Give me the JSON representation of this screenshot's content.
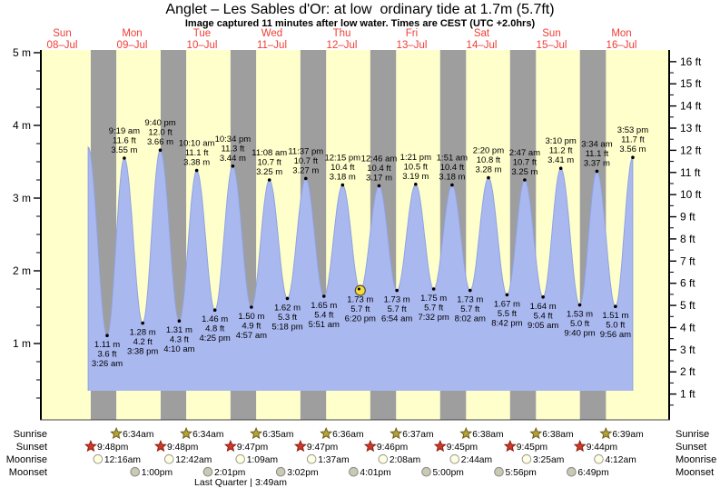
{
  "title": "Anglet – Les Sables d'Or: at low  ordinary tide at 1.7m (5.7ft)",
  "subtitle": "Image captured 11 minutes after low water. Times are CEST (UTC +2.0hrs)",
  "colors": {
    "day_band": "#ffffcc",
    "night_band": "#9e9e9e",
    "tide_fill": "#aab8f0",
    "tide_edge": "#8fa3e0",
    "date_label": "#f03c34",
    "sunrise_fill": "#b5a336",
    "sunrise_stroke": "#6e5e1e",
    "sunset_fill": "#cf3a28",
    "sunset_stroke": "#8c1f14",
    "moonrise_fill": "#ffffdd",
    "moonrise_stroke": "#999999",
    "moonset_fill": "#c9c9b4",
    "moonset_stroke": "#888888",
    "marker_fill": "#f5dc3c",
    "marker_stroke": "#55503a"
  },
  "chart_data": {
    "type": "area",
    "title": "Anglet – Les Sables d'Or tide heights",
    "x_axis": {
      "unit": "days",
      "days": [
        {
          "name": "Sun",
          "date": "08–Jul"
        },
        {
          "name": "Mon",
          "date": "09–Jul"
        },
        {
          "name": "Tue",
          "date": "10–Jul"
        },
        {
          "name": "Wed",
          "date": "11–Jul"
        },
        {
          "name": "Thu",
          "date": "12–Jul"
        },
        {
          "name": "Fri",
          "date": "13–Jul"
        },
        {
          "name": "Sat",
          "date": "14–Jul"
        },
        {
          "name": "Sun",
          "date": "15–Jul"
        },
        {
          "name": "Mon",
          "date": "16–Jul"
        }
      ]
    },
    "y_axis_left": {
      "unit": "m",
      "values": [
        5,
        4,
        3,
        2,
        1
      ],
      "labels": [
        "5 m",
        "4 m",
        "3 m",
        "2 m",
        "1 m"
      ],
      "minor_step": 0.25
    },
    "y_axis_right": {
      "unit": "ft",
      "values": [
        16,
        15,
        14,
        13,
        12,
        11,
        10,
        9,
        8,
        7,
        6,
        5,
        4,
        3,
        2,
        1
      ],
      "labels": [
        "16 ft",
        "15 ft",
        "14 ft",
        "13 ft",
        "12 ft",
        "11 ft",
        "10 ft",
        "9 ft",
        "8 ft",
        "7 ft",
        "6 ft",
        "5 ft",
        "4 ft",
        "3 ft",
        "2 ft",
        "1 ft"
      ],
      "minor_step": 0.5
    },
    "series_start": {
      "t_hours": 20.92,
      "height_m": 3.7
    },
    "high_tides": [
      {
        "t_hours": 33.32,
        "height_m": 3.55,
        "time": "9:19 am",
        "ft": "11.6 ft",
        "m": "3.55 m"
      },
      {
        "t_hours": 45.67,
        "height_m": 3.66,
        "time": "9:40 pm",
        "ft": "12.0 ft",
        "m": "3.66 m"
      },
      {
        "t_hours": 58.17,
        "height_m": 3.38,
        "time": "10:10 am",
        "ft": "11.1 ft",
        "m": "3.38 m"
      },
      {
        "t_hours": 70.57,
        "height_m": 3.44,
        "time": "10:34 pm",
        "ft": "11.3 ft",
        "m": "3.44 m"
      },
      {
        "t_hours": 83.13,
        "height_m": 3.25,
        "time": "11:08 am",
        "ft": "10.7 ft",
        "m": "3.25 m"
      },
      {
        "t_hours": 95.62,
        "height_m": 3.27,
        "time": "11:37 pm",
        "ft": "10.7 ft",
        "m": "3.27 m"
      },
      {
        "t_hours": 108.25,
        "height_m": 3.18,
        "time": "12:15 pm",
        "ft": "10.4 ft",
        "m": "3.18 m"
      },
      {
        "t_hours": 120.77,
        "height_m": 3.17,
        "time": "12:46 am",
        "ft": "10.4 ft",
        "m": "3.17 m"
      },
      {
        "t_hours": 133.35,
        "height_m": 3.19,
        "time": "1:21 pm",
        "ft": "10.5 ft",
        "m": "3.19 m"
      },
      {
        "t_hours": 145.85,
        "height_m": 3.18,
        "time": "1:51 am",
        "ft": "10.4 ft",
        "m": "3.18 m"
      },
      {
        "t_hours": 158.33,
        "height_m": 3.28,
        "time": "2:20 pm",
        "ft": "10.8 ft",
        "m": "3.28 m"
      },
      {
        "t_hours": 170.78,
        "height_m": 3.25,
        "time": "2:47 am",
        "ft": "10.7 ft",
        "m": "3.25 m"
      },
      {
        "t_hours": 183.17,
        "height_m": 3.41,
        "time": "3:10 pm",
        "ft": "11.2 ft",
        "m": "3.41 m"
      },
      {
        "t_hours": 195.57,
        "height_m": 3.37,
        "time": "3:34 am",
        "ft": "11.1 ft",
        "m": "3.37 m"
      },
      {
        "t_hours": 207.88,
        "height_m": 3.56,
        "time": "3:53 pm",
        "ft": "11.7 ft",
        "m": "3.56 m"
      }
    ],
    "low_tides": [
      {
        "t_hours": 27.43,
        "height_m": 1.11,
        "m": "1.11 m",
        "ft": "3.6 ft",
        "time": "3:26 am"
      },
      {
        "t_hours": 39.63,
        "height_m": 1.28,
        "m": "1.28 m",
        "ft": "4.2 ft",
        "time": "3:38 pm"
      },
      {
        "t_hours": 52.17,
        "height_m": 1.31,
        "m": "1.31 m",
        "ft": "4.3 ft",
        "time": "4:10 am"
      },
      {
        "t_hours": 64.42,
        "height_m": 1.46,
        "m": "1.46 m",
        "ft": "4.8 ft",
        "time": "4:25 pm"
      },
      {
        "t_hours": 76.95,
        "height_m": 1.5,
        "m": "1.50 m",
        "ft": "4.9 ft",
        "time": "4:57 am"
      },
      {
        "t_hours": 89.3,
        "height_m": 1.62,
        "m": "1.62 m",
        "ft": "5.3 ft",
        "time": "5:18 pm"
      },
      {
        "t_hours": 101.85,
        "height_m": 1.65,
        "m": "1.65 m",
        "ft": "5.4 ft",
        "time": "5:51 am"
      },
      {
        "t_hours": 114.33,
        "height_m": 1.73,
        "m": "1.73 m",
        "ft": "5.7 ft",
        "time": "6:20 pm",
        "current_marker": true
      },
      {
        "t_hours": 126.9,
        "height_m": 1.73,
        "m": "1.73 m",
        "ft": "5.7 ft",
        "time": "6:54 am"
      },
      {
        "t_hours": 139.53,
        "height_m": 1.75,
        "m": "1.75 m",
        "ft": "5.7 ft",
        "time": "7:32 pm"
      },
      {
        "t_hours": 152.03,
        "height_m": 1.73,
        "m": "1.73 m",
        "ft": "5.7 ft",
        "time": "8:02 am"
      },
      {
        "t_hours": 164.7,
        "height_m": 1.67,
        "m": "1.67 m",
        "ft": "5.5 ft",
        "time": "8:42 pm"
      },
      {
        "t_hours": 177.08,
        "height_m": 1.64,
        "m": "1.64 m",
        "ft": "5.4 ft",
        "time": "9:05 am"
      },
      {
        "t_hours": 189.67,
        "height_m": 1.53,
        "m": "1.53 m",
        "ft": "5.0 ft",
        "time": "9:40 pm"
      },
      {
        "t_hours": 201.93,
        "height_m": 1.51,
        "m": "1.51 m",
        "ft": "5.0 ft",
        "time": "9:56 am"
      }
    ],
    "night_bands_t_hours": [
      [
        21.8,
        30.57
      ],
      [
        45.8,
        54.57
      ],
      [
        69.78,
        78.58
      ],
      [
        93.78,
        102.6
      ],
      [
        117.77,
        126.62
      ],
      [
        141.75,
        150.63
      ],
      [
        165.75,
        174.63
      ],
      [
        189.73,
        198.65
      ]
    ]
  },
  "astro": {
    "rows": [
      {
        "id": "sunrise",
        "label": "Sunrise",
        "icon": "star",
        "events": [
          {
            "t_hours": 30.57,
            "time": "6:34am"
          },
          {
            "t_hours": 54.57,
            "time": "6:34am"
          },
          {
            "t_hours": 78.58,
            "time": "6:35am"
          },
          {
            "t_hours": 102.6,
            "time": "6:36am"
          },
          {
            "t_hours": 126.62,
            "time": "6:37am"
          },
          {
            "t_hours": 150.63,
            "time": "6:38am"
          },
          {
            "t_hours": 174.63,
            "time": "6:38am"
          },
          {
            "t_hours": 198.65,
            "time": "6:39am"
          }
        ]
      },
      {
        "id": "sunset",
        "label": "Sunset",
        "icon": "star",
        "events": [
          {
            "t_hours": 21.8,
            "time": "9:48pm"
          },
          {
            "t_hours": 45.8,
            "time": "9:48pm"
          },
          {
            "t_hours": 69.78,
            "time": "9:47pm"
          },
          {
            "t_hours": 93.78,
            "time": "9:47pm"
          },
          {
            "t_hours": 117.77,
            "time": "9:46pm"
          },
          {
            "t_hours": 141.75,
            "time": "9:45pm"
          },
          {
            "t_hours": 165.75,
            "time": "9:45pm"
          },
          {
            "t_hours": 189.73,
            "time": "9:44pm"
          }
        ]
      },
      {
        "id": "moonrise",
        "label": "Moonrise",
        "icon": "circle",
        "events": [
          {
            "t_hours": 24.27,
            "time": "12:16am"
          },
          {
            "t_hours": 48.7,
            "time": "12:42am"
          },
          {
            "t_hours": 73.15,
            "time": "1:09am"
          },
          {
            "t_hours": 97.62,
            "time": "1:37am"
          },
          {
            "t_hours": 122.13,
            "time": "2:08am"
          },
          {
            "t_hours": 146.73,
            "time": "2:44am"
          },
          {
            "t_hours": 171.42,
            "time": "3:25am"
          },
          {
            "t_hours": 196.2,
            "time": "4:12am"
          }
        ]
      },
      {
        "id": "moonset",
        "label": "Moonset",
        "icon": "circle",
        "events": [
          {
            "t_hours": 37.0,
            "time": "1:00pm"
          },
          {
            "t_hours": 62.02,
            "time": "2:01pm"
          },
          {
            "t_hours": 87.03,
            "time": "3:02pm"
          },
          {
            "t_hours": 112.02,
            "time": "4:01pm"
          },
          {
            "t_hours": 137.0,
            "time": "5:00pm"
          },
          {
            "t_hours": 161.93,
            "time": "5:56pm"
          },
          {
            "t_hours": 186.82,
            "time": "6:49pm"
          }
        ]
      }
    ],
    "moon_phase": "Last Quarter | 3:49am"
  }
}
